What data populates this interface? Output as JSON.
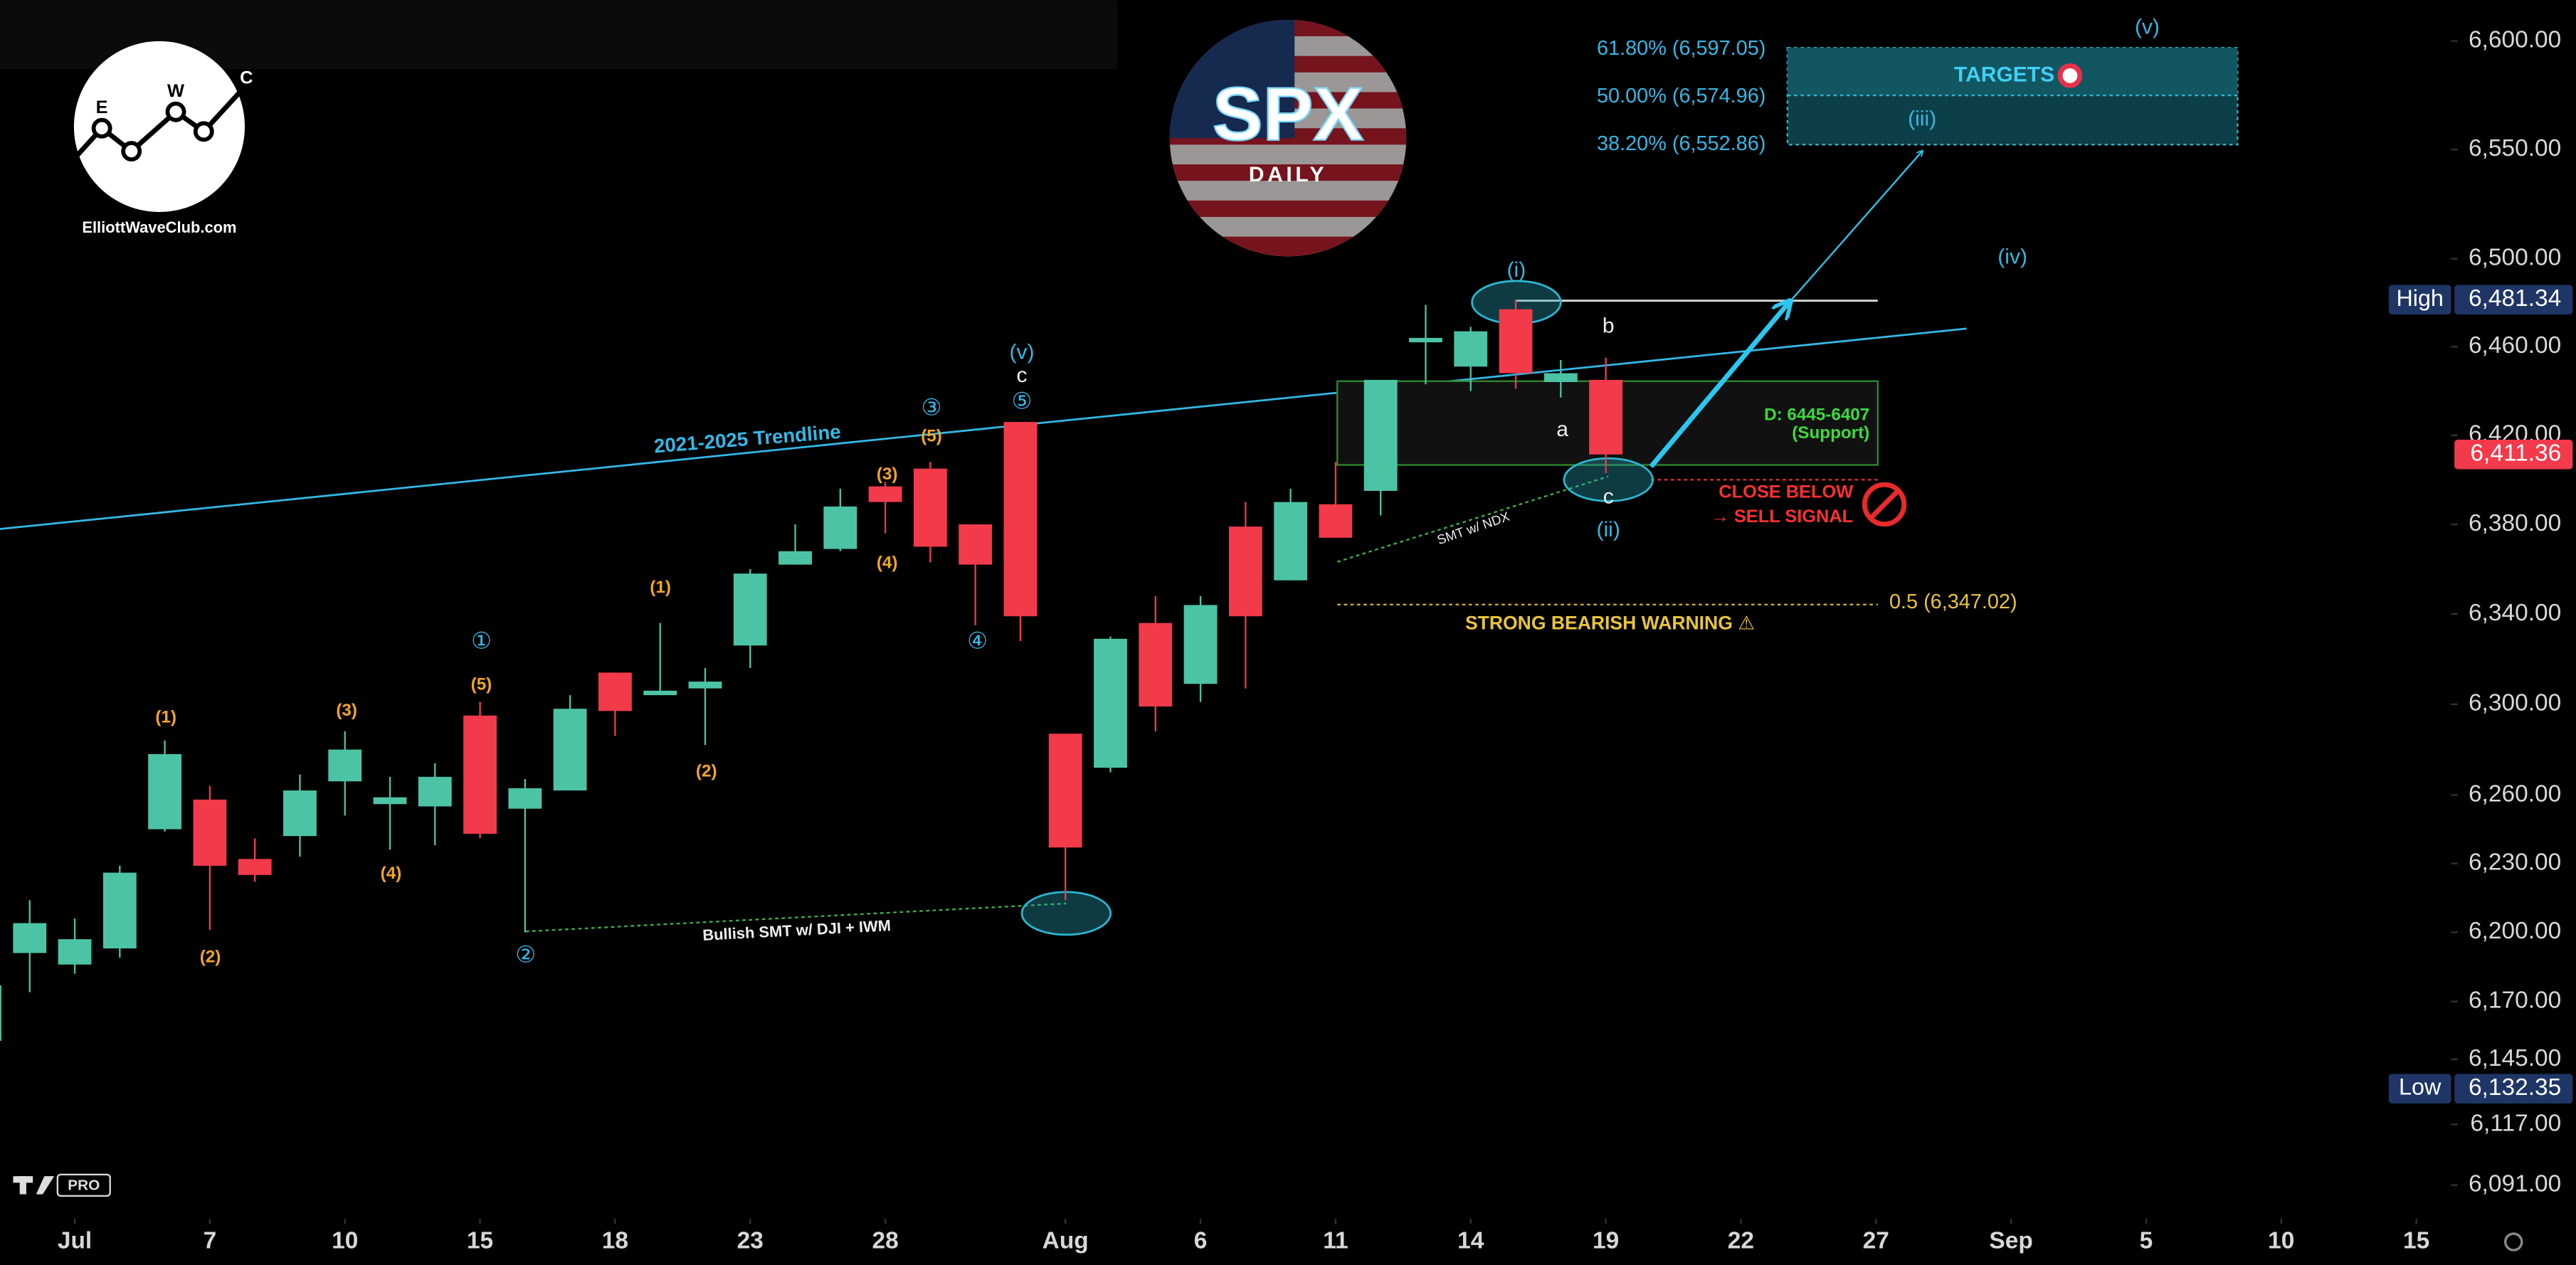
{
  "chart_data": {
    "type": "candlestick",
    "title": "SPX",
    "subtitle": "DAILY",
    "log_scale": true,
    "up_color": "#4cc3a5",
    "down_color": "#f23a4a",
    "xlim": [
      0.34,
      54.7
    ],
    "ylim": [
      6078,
      6619
    ],
    "yticks": [
      {
        "value": 6091,
        "label": "6,091.00"
      },
      {
        "value": 6117,
        "label": "6,117.00"
      },
      {
        "value": 6145,
        "label": "6,145.00"
      },
      {
        "value": 6170,
        "label": "6,170.00"
      },
      {
        "value": 6200,
        "label": "6,200.00"
      },
      {
        "value": 6230,
        "label": "6,230.00"
      },
      {
        "value": 6260,
        "label": "6,260.00"
      },
      {
        "value": 6300,
        "label": "6,300.00"
      },
      {
        "value": 6340,
        "label": "6,340.00"
      },
      {
        "value": 6380,
        "label": "6,380.00"
      },
      {
        "value": 6420,
        "label": "6,420.00"
      },
      {
        "value": 6460,
        "label": "6,460.00"
      },
      {
        "value": 6500,
        "label": "6,500.00"
      },
      {
        "value": 6550,
        "label": "6,550.00"
      },
      {
        "value": 6600,
        "label": "6,600.00"
      }
    ],
    "xticks": [
      {
        "value": 2,
        "label": "Jul"
      },
      {
        "value": 5,
        "label": "7"
      },
      {
        "value": 8,
        "label": "10"
      },
      {
        "value": 11,
        "label": "15"
      },
      {
        "value": 14,
        "label": "18"
      },
      {
        "value": 17,
        "label": "23"
      },
      {
        "value": 20,
        "label": "28"
      },
      {
        "value": 24,
        "label": "Aug"
      },
      {
        "value": 27,
        "label": "6"
      },
      {
        "value": 30,
        "label": "11"
      },
      {
        "value": 33,
        "label": "14"
      },
      {
        "value": 36,
        "label": "19"
      },
      {
        "value": 39,
        "label": "22"
      },
      {
        "value": 42,
        "label": "27"
      },
      {
        "value": 45,
        "label": "Sep"
      },
      {
        "value": 48,
        "label": "5"
      },
      {
        "value": 51,
        "label": "10"
      },
      {
        "value": 54,
        "label": "15"
      }
    ],
    "x": [
      0,
      1,
      2,
      3,
      4,
      5,
      6,
      7,
      8,
      9,
      10,
      11,
      12,
      13,
      14,
      15,
      16,
      17,
      18,
      19,
      20,
      21,
      22,
      23,
      24,
      25,
      26,
      27,
      28,
      29,
      30,
      31,
      32,
      33,
      34,
      35,
      36
    ],
    "open": [
      6153,
      6191,
      6186,
      6193,
      6245,
      6258,
      6232,
      6242,
      6266,
      6256,
      6255,
      6295,
      6254,
      6262,
      6314,
      6304,
      6307,
      6326,
      6362,
      6369,
      6397,
      6405,
      6380,
      6426,
      6287,
      6272,
      6336,
      6309,
      6379,
      6355,
      6389,
      6395,
      6462,
      6451,
      6477,
      6444,
      6445
    ],
    "high": [
      6180,
      6214,
      6206,
      6229,
      6284,
      6264,
      6241,
      6269,
      6288,
      6268,
      6274,
      6301,
      6267,
      6304,
      6314,
      6336,
      6316,
      6360,
      6380,
      6396,
      6399,
      6408,
      6380,
      6426,
      6287,
      6330,
      6348,
      6348,
      6390,
      6396,
      6408,
      6445,
      6479,
      6469,
      6481.34,
      6454,
      6455
    ],
    "low": [
      6150,
      6174,
      6182,
      6189,
      6244,
      6201,
      6222,
      6233,
      6251,
      6236,
      6238,
      6241,
      6200,
      6262,
      6286,
      6304,
      6282,
      6316,
      6362,
      6368,
      6376,
      6363,
      6335,
      6328,
      6214,
      6270,
      6288,
      6301,
      6307,
      6355,
      6374,
      6384,
      6443,
      6440,
      6441,
      6437,
      6403
    ],
    "close": [
      6177,
      6204,
      6197,
      6226,
      6278,
      6229,
      6225,
      6262,
      6280,
      6259,
      6268,
      6243,
      6263,
      6298,
      6297,
      6306,
      6310,
      6358,
      6368,
      6388,
      6390,
      6370,
      6362,
      6339,
      6237,
      6329,
      6299,
      6344,
      6339,
      6390,
      6374,
      6445,
      6464,
      6467,
      6448,
      6448,
      6411.36
    ],
    "high_marker": {
      "name": "High",
      "value": 6481.34,
      "label": "6,481.34"
    },
    "low_marker": {
      "name": "Low",
      "value": 6132.35,
      "label": "6,132.35"
    },
    "last_price": {
      "value": 6411.36,
      "label": "6,411.36"
    },
    "annotations": [
      "(1)",
      "(2)",
      "(3)",
      "(4)",
      "(5)",
      "(1)",
      "(2)",
      "(3)",
      "(4)",
      "(5)",
      "①",
      "②",
      "③",
      "④",
      "⑤",
      "(v)",
      "c",
      "(i)",
      "b",
      "a",
      "c",
      "(ii)",
      "(iv)",
      "(v)",
      "(iii)",
      "2021-2025 Trendline",
      "Bullish SMT w/ DJI + IWM",
      "SMT w/ NDX",
      "D: 6445-6407",
      "(Support)",
      "CLOSE BELOW",
      "→ SELL SIGNAL",
      "0.5 (6,347.02)",
      "STRONG BEARISH WARNING ⚠",
      "61.80% (6,597.05)",
      "50.00% (6,574.96)",
      "38.20% (6,552.86)",
      "TARGETS"
    ]
  },
  "logos": {
    "ewc_letters": [
      "E",
      "W",
      "C"
    ],
    "ewc_site": "ElliottWaveClub.com",
    "tv_badge": "PRO"
  }
}
